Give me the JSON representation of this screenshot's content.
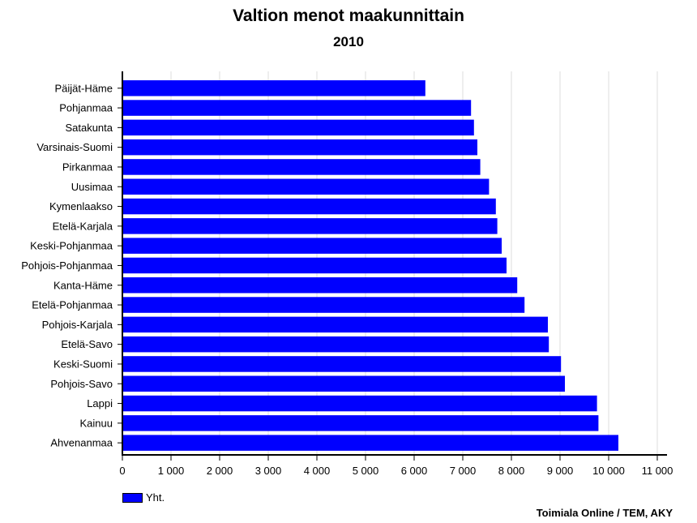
{
  "chart_data": {
    "type": "bar",
    "orientation": "horizontal",
    "title": "Valtion menot maakunnittain",
    "subtitle": "2010",
    "categories": [
      "Päijät-Häme",
      "Pohjanmaa",
      "Satakunta",
      "Varsinais-Suomi",
      "Pirkanmaa",
      "Uusimaa",
      "Kymenlaakso",
      "Etelä-Karjala",
      "Keski-Pohjanmaa",
      "Pohjois-Pohjanmaa",
      "Kanta-Häme",
      "Etelä-Pohjanmaa",
      "Pohjois-Karjala",
      "Etelä-Savo",
      "Keski-Suomi",
      "Pohjois-Savo",
      "Lappi",
      "Kainuu",
      "Ahvenanmaa"
    ],
    "series": [
      {
        "name": "Yht.",
        "color": "#0000ff",
        "values": [
          6230,
          7170,
          7230,
          7300,
          7360,
          7540,
          7680,
          7710,
          7800,
          7900,
          8120,
          8270,
          8750,
          8770,
          9020,
          9100,
          9760,
          9790,
          10200
        ]
      }
    ],
    "xlim": [
      0,
      11000
    ],
    "xticks": [
      0,
      1000,
      2000,
      3000,
      4000,
      5000,
      6000,
      7000,
      8000,
      9000,
      10000,
      11000
    ],
    "xtick_labels": [
      "0",
      "1 000",
      "2 000",
      "3 000",
      "4 000",
      "5 000",
      "6 000",
      "7 000",
      "8 000",
      "9 000",
      "10 000",
      "11 000"
    ],
    "grid": "vertical",
    "legend_position": "bottom-left",
    "source": "Toimiala Online / TEM, AKY"
  }
}
